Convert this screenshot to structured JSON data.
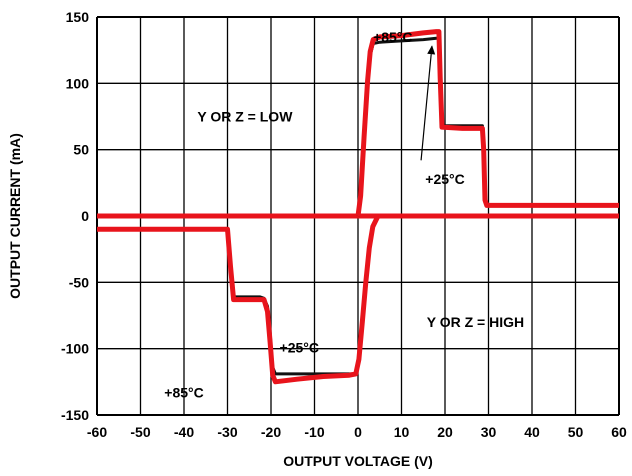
{
  "chart_data": {
    "type": "line",
    "xlabel": "OUTPUT VOLTAGE (V)",
    "ylabel": "OUTPUT CURRENT (mA)",
    "xlim": [
      -60,
      60
    ],
    "ylim": [
      -150,
      150
    ],
    "x_ticks": [
      -60,
      -50,
      -40,
      -30,
      -20,
      -10,
      0,
      10,
      20,
      30,
      40,
      50,
      60
    ],
    "y_ticks": [
      -150,
      -100,
      -50,
      0,
      50,
      100,
      150
    ],
    "grid": true,
    "colors": {
      "red": "#e8141c",
      "black": "#111111",
      "grid": "#000000"
    },
    "series": [
      {
        "color": "red",
        "width": 5,
        "points": [
          [
            -60,
            0
          ],
          [
            60,
            0
          ]
        ]
      },
      {
        "color": "black",
        "width": 3,
        "points": [
          [
            0,
            0
          ],
          [
            0.6,
            15
          ],
          [
            1.4,
            60
          ],
          [
            2.2,
            100
          ],
          [
            2.8,
            121
          ],
          [
            3.5,
            130
          ],
          [
            5,
            131
          ],
          [
            10,
            132
          ],
          [
            15,
            133
          ],
          [
            18,
            134
          ],
          [
            18.6,
            134
          ],
          [
            18.9,
            104
          ],
          [
            19.3,
            68
          ],
          [
            24,
            68
          ],
          [
            28.6,
            68
          ],
          [
            28.9,
            50
          ],
          [
            29.2,
            12
          ],
          [
            29.6,
            8
          ],
          [
            60,
            8
          ]
        ]
      },
      {
        "color": "red",
        "width": 5,
        "points": [
          [
            0,
            0
          ],
          [
            0.6,
            15
          ],
          [
            1.4,
            60
          ],
          [
            2.2,
            102
          ],
          [
            2.8,
            124
          ],
          [
            3.5,
            133
          ],
          [
            5,
            135
          ],
          [
            10,
            136
          ],
          [
            15,
            138
          ],
          [
            18,
            139
          ],
          [
            18.6,
            139
          ],
          [
            18.9,
            104
          ],
          [
            19.3,
            67
          ],
          [
            24,
            66
          ],
          [
            28.6,
            66
          ],
          [
            28.9,
            50
          ],
          [
            29.2,
            12
          ],
          [
            29.6,
            8
          ],
          [
            60,
            8
          ]
        ]
      },
      {
        "color": "black",
        "width": 3,
        "points": [
          [
            -30,
            -10
          ],
          [
            -29.3,
            -35
          ],
          [
            -28.6,
            -61
          ],
          [
            -24,
            -61
          ],
          [
            -22.5,
            -61
          ],
          [
            -21.6,
            -62
          ],
          [
            -20.8,
            -68
          ],
          [
            -20.2,
            -88
          ],
          [
            -19.6,
            -114
          ],
          [
            -19,
            -119
          ],
          [
            -14,
            -119
          ],
          [
            -8,
            -119
          ],
          [
            -2,
            -119
          ],
          [
            -0.5,
            -119
          ],
          [
            0.2,
            -108
          ],
          [
            1,
            -80
          ],
          [
            1.8,
            -50
          ],
          [
            2.6,
            -24
          ],
          [
            3.4,
            -8
          ],
          [
            4.6,
            0
          ]
        ]
      },
      {
        "color": "red",
        "width": 5,
        "points": [
          [
            -60,
            -10
          ],
          [
            -30,
            -10
          ],
          [
            -29.3,
            -38
          ],
          [
            -28.6,
            -63
          ],
          [
            -24,
            -63
          ],
          [
            -22.5,
            -63
          ],
          [
            -21.6,
            -63
          ],
          [
            -20.8,
            -72
          ],
          [
            -20.2,
            -95
          ],
          [
            -19.6,
            -120
          ],
          [
            -19,
            -125
          ],
          [
            -14,
            -123
          ],
          [
            -8,
            -121
          ],
          [
            -2,
            -120
          ],
          [
            -0.5,
            -119
          ],
          [
            0.2,
            -108
          ],
          [
            1,
            -80
          ],
          [
            1.8,
            -50
          ],
          [
            2.6,
            -24
          ],
          [
            3.4,
            -8
          ],
          [
            4.6,
            0
          ],
          [
            60,
            0
          ]
        ]
      }
    ],
    "annotations": [
      {
        "text": "+85°C",
        "x": 8,
        "y": 135
      },
      {
        "text": "Y OR Z = LOW",
        "x": -26,
        "y": 75
      },
      {
        "text": "+25°C",
        "x": 20,
        "y": 28
      },
      {
        "text": "Y OR Z = HIGH",
        "x": 27,
        "y": -80
      },
      {
        "text": "+25°C",
        "x": -13.5,
        "y": -99
      },
      {
        "text": "+85°C",
        "x": -40,
        "y": -133
      }
    ],
    "arrow": {
      "from": [
        14.5,
        42
      ],
      "to": [
        17,
        128
      ]
    }
  }
}
